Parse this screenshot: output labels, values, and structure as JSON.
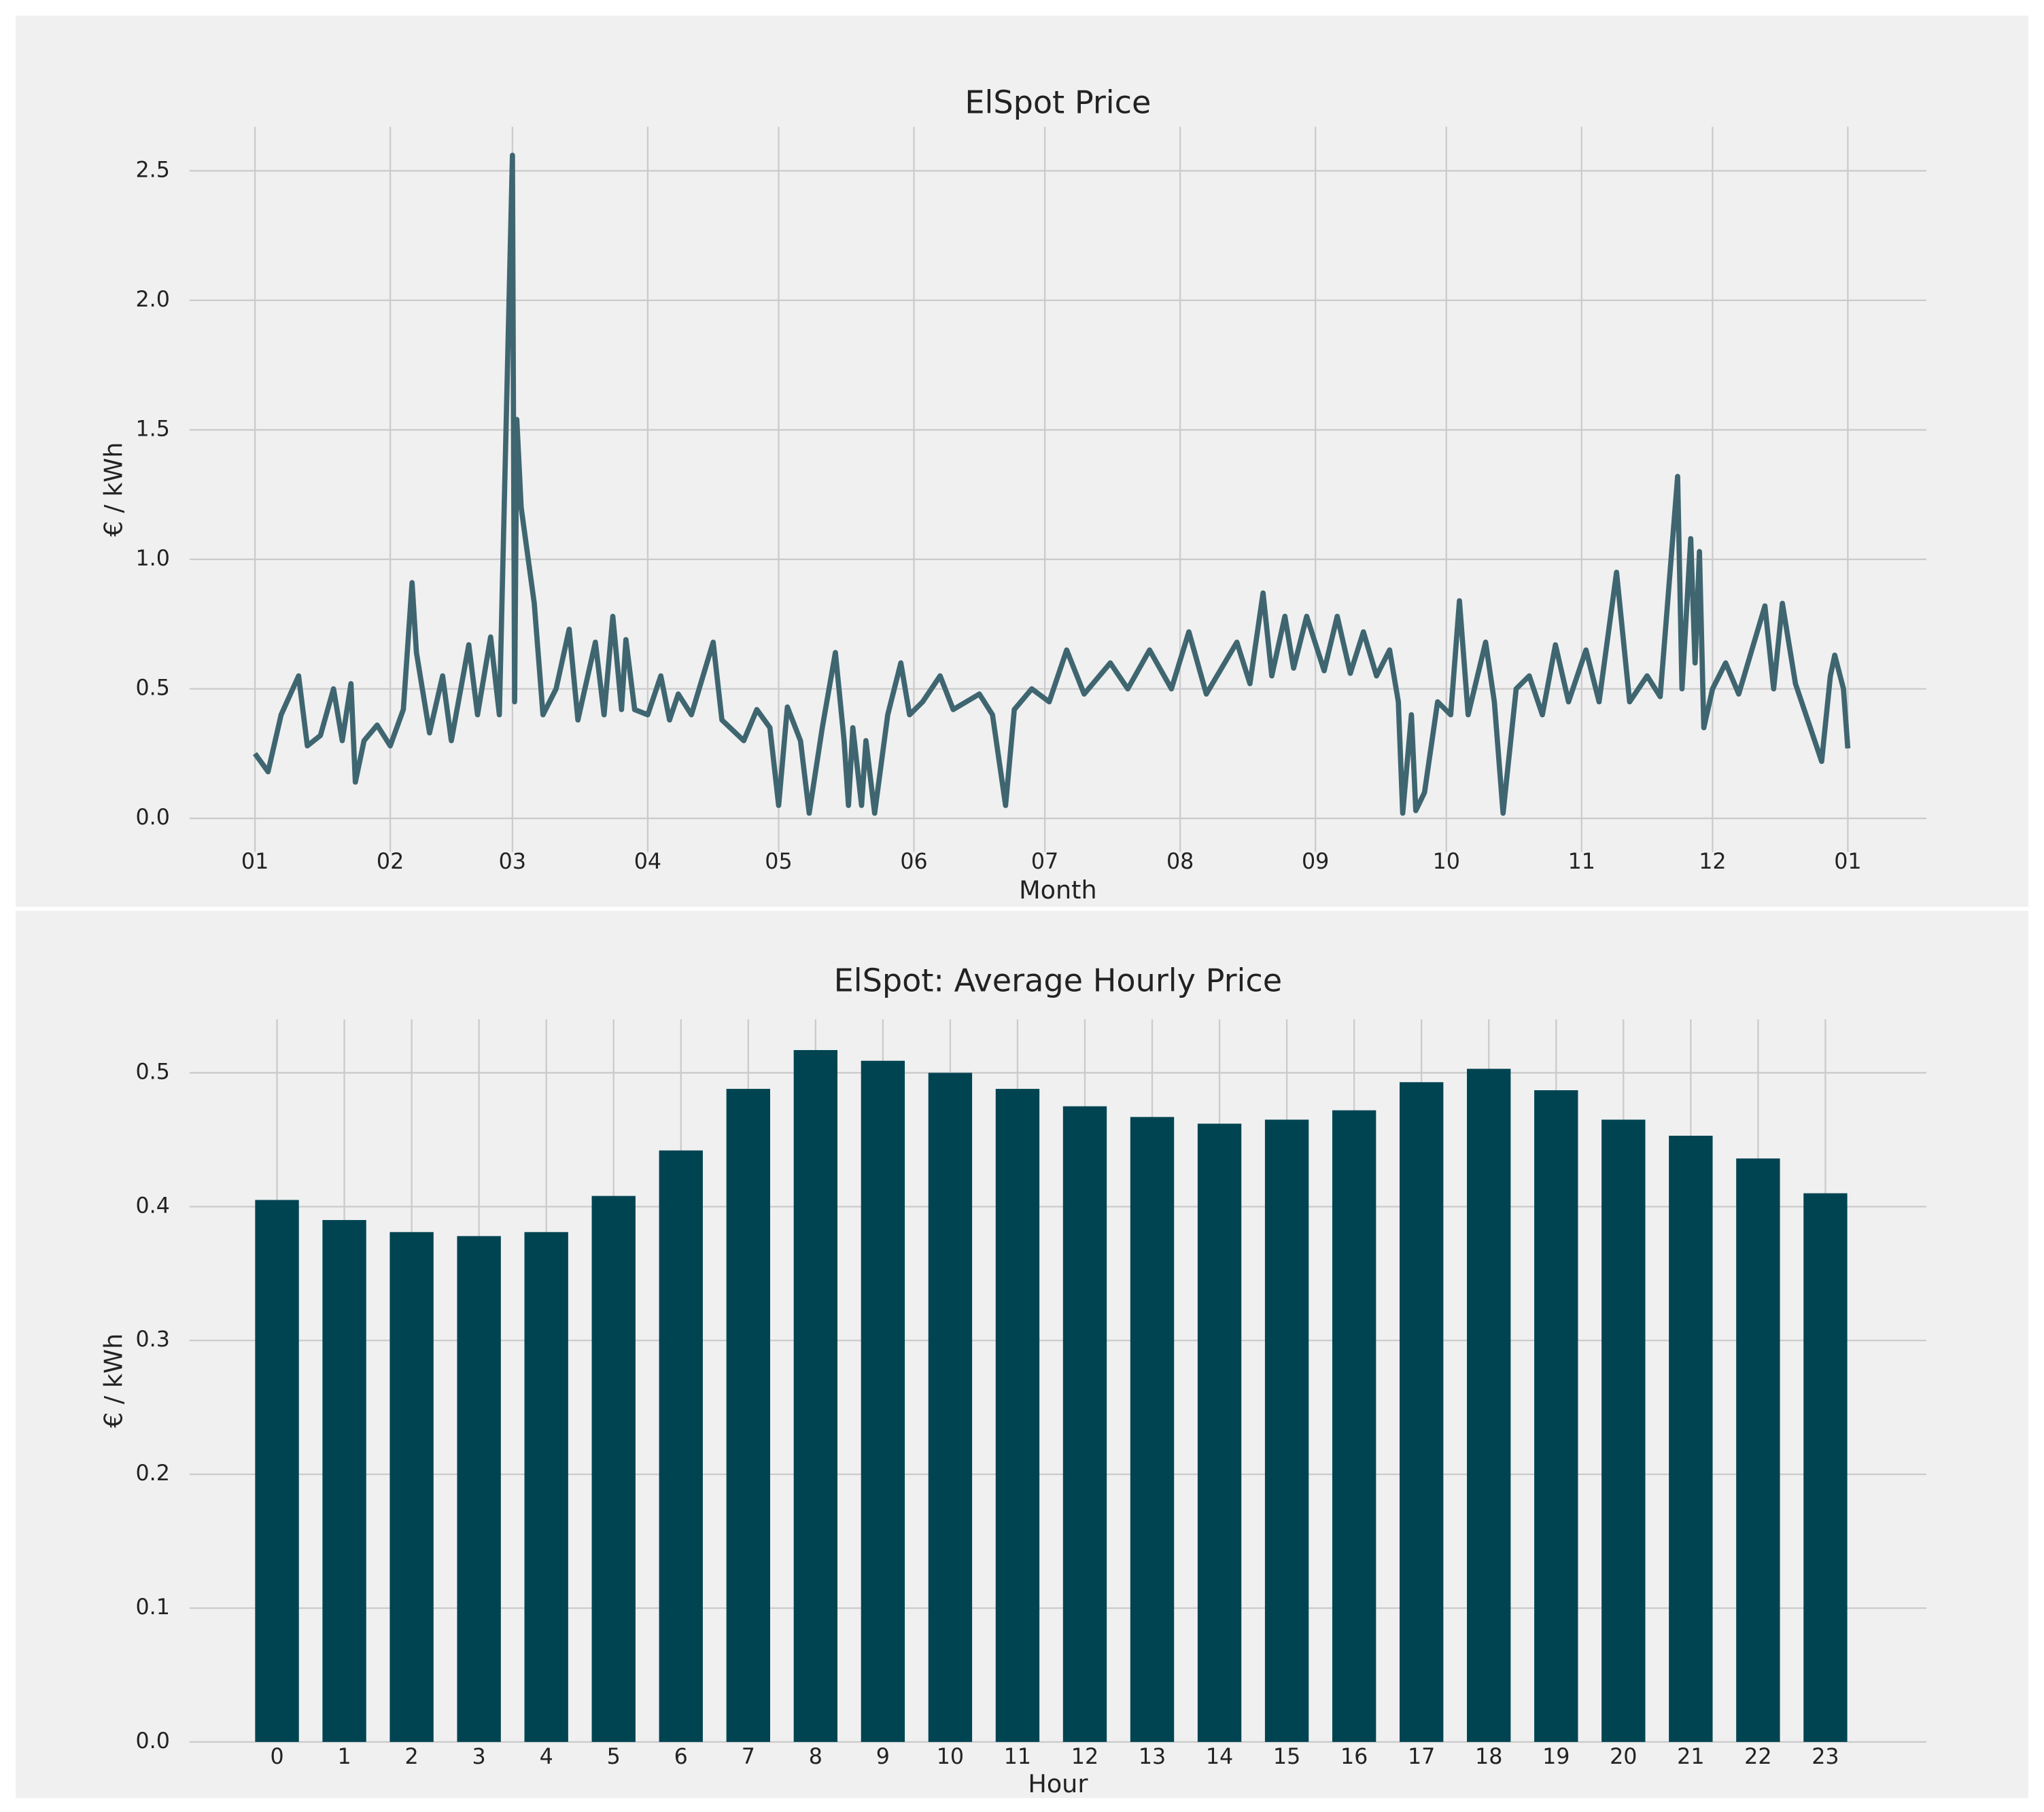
{
  "chart_data": [
    {
      "type": "line",
      "title": "ElSpot Price",
      "xlabel": "Month",
      "ylabel": "€ / kWh",
      "xlim": [
        -15,
        383
      ],
      "ylim": [
        -0.13,
        2.67
      ],
      "grid": true,
      "xticks": [
        {
          "value": 0,
          "label": "01"
        },
        {
          "value": 31,
          "label": "02"
        },
        {
          "value": 59,
          "label": "03"
        },
        {
          "value": 90,
          "label": "04"
        },
        {
          "value": 120,
          "label": "05"
        },
        {
          "value": 151,
          "label": "06"
        },
        {
          "value": 181,
          "label": "07"
        },
        {
          "value": 212,
          "label": "08"
        },
        {
          "value": 243,
          "label": "09"
        },
        {
          "value": 273,
          "label": "10"
        },
        {
          "value": 304,
          "label": "11"
        },
        {
          "value": 334,
          "label": "12"
        },
        {
          "value": 365,
          "label": "01"
        }
      ],
      "yticks": [
        {
          "value": 0,
          "label": "0.0"
        },
        0.5,
        {
          "value": 1,
          "label": "1.0"
        },
        1.5,
        {
          "value": 2,
          "label": "2.0"
        },
        2.5
      ],
      "series": [
        {
          "name": "ElSpot",
          "color": "#3f6670",
          "x": [
            0,
            3,
            6,
            10,
            12,
            15,
            18,
            20,
            22,
            23,
            25,
            28,
            31,
            34,
            36,
            37,
            40,
            43,
            45,
            49,
            51,
            54,
            56,
            59,
            59.5,
            60,
            61,
            64,
            66,
            69,
            72,
            74,
            78,
            80,
            82,
            84,
            85,
            87,
            90,
            93,
            95,
            97,
            100,
            105,
            107,
            112,
            115,
            118,
            120,
            122,
            125,
            127,
            130,
            133,
            135,
            136,
            137,
            139,
            140,
            142,
            145,
            148,
            150,
            153,
            157,
            160,
            166,
            169,
            172,
            174,
            178,
            182,
            186,
            190,
            196,
            200,
            205,
            210,
            214,
            218,
            225,
            228,
            231,
            233,
            236,
            238,
            241,
            245,
            248,
            251,
            254,
            257,
            260,
            262,
            263,
            265,
            266,
            268,
            271,
            274,
            276,
            278,
            282,
            284,
            286,
            289,
            292,
            295,
            298,
            301,
            305,
            308,
            312,
            315,
            319,
            322,
            326,
            327,
            329,
            330,
            331,
            332,
            334,
            337,
            340,
            346,
            348,
            350,
            353,
            359,
            361,
            362,
            364,
            365
          ],
          "values": [
            0.25,
            0.18,
            0.4,
            0.55,
            0.28,
            0.32,
            0.5,
            0.3,
            0.52,
            0.14,
            0.3,
            0.36,
            0.28,
            0.42,
            0.91,
            0.64,
            0.33,
            0.55,
            0.3,
            0.67,
            0.4,
            0.7,
            0.4,
            2.56,
            0.45,
            1.54,
            1.2,
            0.83,
            0.4,
            0.5,
            0.73,
            0.38,
            0.68,
            0.4,
            0.78,
            0.42,
            0.69,
            0.42,
            0.4,
            0.55,
            0.38,
            0.48,
            0.4,
            0.68,
            0.38,
            0.3,
            0.42,
            0.35,
            0.05,
            0.43,
            0.3,
            0.02,
            0.35,
            0.64,
            0.3,
            0.05,
            0.35,
            0.05,
            0.3,
            0.02,
            0.4,
            0.6,
            0.4,
            0.45,
            0.55,
            0.42,
            0.48,
            0.4,
            0.05,
            0.42,
            0.5,
            0.45,
            0.65,
            0.48,
            0.6,
            0.5,
            0.65,
            0.5,
            0.72,
            0.48,
            0.68,
            0.52,
            0.87,
            0.55,
            0.78,
            0.58,
            0.78,
            0.57,
            0.78,
            0.56,
            0.72,
            0.55,
            0.65,
            0.45,
            0.02,
            0.4,
            0.03,
            0.1,
            0.45,
            0.4,
            0.84,
            0.4,
            0.68,
            0.45,
            0.02,
            0.5,
            0.55,
            0.4,
            0.67,
            0.45,
            0.65,
            0.45,
            0.95,
            0.45,
            0.55,
            0.47,
            1.32,
            0.5,
            1.08,
            0.6,
            1.03,
            0.35,
            0.5,
            0.6,
            0.48,
            0.82,
            0.5,
            0.83,
            0.52,
            0.22,
            0.55,
            0.63,
            0.5,
            0.27
          ]
        }
      ]
    },
    {
      "type": "bar",
      "title": "ElSpot: Average Hourly Price",
      "xlabel": "Hour",
      "ylabel": "€ / kWh",
      "xlim": [
        -1.3,
        24.5
      ],
      "ylim": [
        0,
        0.54
      ],
      "grid": true,
      "color": "#004452",
      "categories": [
        "0",
        "1",
        "2",
        "3",
        "4",
        "5",
        "6",
        "7",
        "8",
        "9",
        "10",
        "11",
        "12",
        "13",
        "14",
        "15",
        "16",
        "17",
        "18",
        "19",
        "20",
        "21",
        "22",
        "23"
      ],
      "values": [
        0.405,
        0.39,
        0.381,
        0.378,
        0.381,
        0.408,
        0.442,
        0.488,
        0.517,
        0.509,
        0.5,
        0.488,
        0.475,
        0.467,
        0.462,
        0.465,
        0.472,
        0.493,
        0.503,
        0.487,
        0.465,
        0.453,
        0.436,
        0.41
      ],
      "yticks": [
        {
          "value": 0,
          "label": "0.0"
        },
        0.1,
        0.2,
        0.3,
        0.4,
        0.5
      ]
    }
  ]
}
